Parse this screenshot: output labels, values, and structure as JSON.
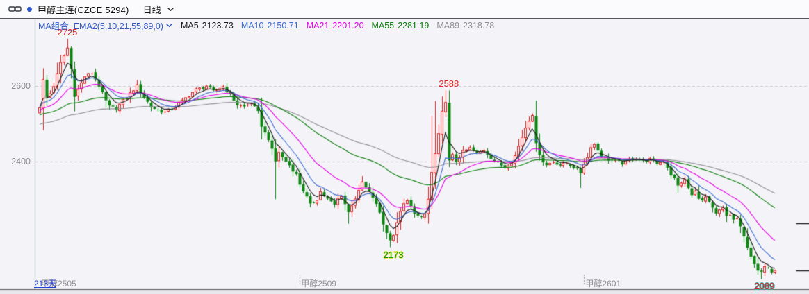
{
  "window": {
    "title": "甲醇主连(CZCE 5294)",
    "period": "日线"
  },
  "indicator": {
    "name": "MA组合_EMA2(5,10,21,55,89,0)",
    "values": [
      {
        "label": "MA5",
        "value": "2123.73",
        "color": "#1a1a1a"
      },
      {
        "label": "MA10",
        "value": "2150.71",
        "color": "#3c6cd2"
      },
      {
        "label": "MA21",
        "value": "2201.20",
        "color": "#e400e4"
      },
      {
        "label": "MA55",
        "value": "2281.19",
        "color": "#0b7d0b"
      },
      {
        "label": "MA89",
        "value": "2318.78",
        "color": "#8f8f93"
      }
    ]
  },
  "chart_data": {
    "type": "candlestick",
    "title": "甲醇主连(CZCE 5294) 日线",
    "symbol": "甲醇主连",
    "exchange_code": "CZCE 5294",
    "timeframe": "日线",
    "visible_days_label": "213天",
    "candle_count": 213,
    "ylim": [
      2062,
      2776
    ],
    "grid": "dashed-horizontal",
    "legend_position": "top-left",
    "up_color": "#e02020",
    "down_color": "#0e8412",
    "grid_color": "#c8c8ce",
    "y_axis": {
      "ticks": [
        {
          "label": "2600",
          "value": 2600
        },
        {
          "label": "2400",
          "value": 2400
        }
      ]
    },
    "close_anchors": [
      [
        0,
        2545
      ],
      [
        1,
        2615
      ],
      [
        2,
        2570
      ],
      [
        3,
        2580
      ],
      [
        4,
        2600
      ],
      [
        6,
        2660
      ],
      [
        8,
        2700
      ],
      [
        9,
        2645
      ],
      [
        10,
        2575
      ],
      [
        11,
        2590
      ],
      [
        13,
        2625
      ],
      [
        15,
        2635
      ],
      [
        17,
        2600
      ],
      [
        19,
        2560
      ],
      [
        20,
        2545
      ],
      [
        22,
        2540
      ],
      [
        24,
        2560
      ],
      [
        26,
        2580
      ],
      [
        28,
        2600
      ],
      [
        30,
        2570
      ],
      [
        32,
        2545
      ],
      [
        34,
        2535
      ],
      [
        36,
        2530
      ],
      [
        38,
        2540
      ],
      [
        41,
        2560
      ],
      [
        43,
        2575
      ],
      [
        45,
        2590
      ],
      [
        47,
        2595
      ],
      [
        48,
        2600
      ],
      [
        50,
        2585
      ],
      [
        53,
        2598
      ],
      [
        55,
        2575
      ],
      [
        57,
        2550
      ],
      [
        59,
        2545
      ],
      [
        61,
        2555
      ],
      [
        63,
        2530
      ],
      [
        64,
        2495
      ],
      [
        65,
        2475
      ],
      [
        66,
        2460
      ],
      [
        67,
        2430
      ],
      [
        68,
        2400
      ],
      [
        69,
        2425
      ],
      [
        70,
        2410
      ],
      [
        71,
        2400
      ],
      [
        72,
        2390
      ],
      [
        74,
        2365
      ],
      [
        75,
        2340
      ],
      [
        77,
        2305
      ],
      [
        78,
        2285
      ],
      [
        80,
        2300
      ],
      [
        81,
        2320
      ],
      [
        83,
        2300
      ],
      [
        85,
        2285
      ],
      [
        86,
        2300
      ],
      [
        87,
        2310
      ],
      [
        89,
        2265
      ],
      [
        90,
        2285
      ],
      [
        92,
        2320
      ],
      [
        93,
        2345
      ],
      [
        94,
        2330
      ],
      [
        96,
        2305
      ],
      [
        98,
        2265
      ],
      [
        99,
        2235
      ],
      [
        100,
        2210
      ],
      [
        101,
        2195
      ],
      [
        102,
        2205
      ],
      [
        103,
        2235
      ],
      [
        104,
        2270
      ],
      [
        105,
        2285
      ],
      [
        106,
        2295
      ],
      [
        107,
        2280
      ],
      [
        108,
        2265
      ],
      [
        109,
        2255
      ],
      [
        110,
        2250
      ],
      [
        111,
        2260
      ],
      [
        112,
        2300
      ],
      [
        113,
        2370
      ],
      [
        114,
        2420
      ],
      [
        115,
        2470
      ],
      [
        116,
        2530
      ],
      [
        117,
        2560
      ],
      [
        118,
        2400
      ],
      [
        119,
        2415
      ],
      [
        120,
        2400
      ],
      [
        122,
        2425
      ],
      [
        124,
        2435
      ],
      [
        126,
        2420
      ],
      [
        128,
        2430
      ],
      [
        130,
        2410
      ],
      [
        132,
        2395
      ],
      [
        134,
        2385
      ],
      [
        136,
        2400
      ],
      [
        137,
        2415
      ],
      [
        138,
        2440
      ],
      [
        139,
        2465
      ],
      [
        140,
        2490
      ],
      [
        141,
        2510
      ],
      [
        142,
        2525
      ],
      [
        143,
        2445
      ],
      [
        144,
        2420
      ],
      [
        145,
        2400
      ],
      [
        146,
        2390
      ],
      [
        148,
        2400
      ],
      [
        150,
        2390
      ],
      [
        152,
        2395
      ],
      [
        154,
        2385
      ],
      [
        156,
        2370
      ],
      [
        157,
        2395
      ],
      [
        158,
        2410
      ],
      [
        159,
        2440
      ],
      [
        160,
        2445
      ],
      [
        161,
        2430
      ],
      [
        162,
        2415
      ],
      [
        164,
        2405
      ],
      [
        166,
        2400
      ],
      [
        168,
        2395
      ],
      [
        170,
        2405
      ],
      [
        172,
        2410
      ],
      [
        174,
        2400
      ],
      [
        176,
        2405
      ],
      [
        178,
        2395
      ],
      [
        180,
        2400
      ],
      [
        181,
        2385
      ],
      [
        182,
        2365
      ],
      [
        183,
        2355
      ],
      [
        184,
        2335
      ],
      [
        185,
        2345
      ],
      [
        186,
        2350
      ],
      [
        187,
        2330
      ],
      [
        188,
        2310
      ],
      [
        189,
        2320
      ],
      [
        190,
        2305
      ],
      [
        191,
        2295
      ],
      [
        192,
        2305
      ],
      [
        193,
        2290
      ],
      [
        194,
        2275
      ],
      [
        195,
        2260
      ],
      [
        196,
        2270
      ],
      [
        197,
        2275
      ],
      [
        198,
        2255
      ],
      [
        199,
        2260
      ],
      [
        200,
        2245
      ],
      [
        201,
        2250
      ],
      [
        202,
        2225
      ],
      [
        203,
        2200
      ],
      [
        204,
        2175
      ],
      [
        205,
        2150
      ],
      [
        206,
        2125
      ],
      [
        207,
        2110
      ],
      [
        208,
        2105
      ],
      [
        209,
        2125
      ],
      [
        210,
        2120
      ],
      [
        211,
        2110
      ],
      [
        212,
        2115
      ]
    ],
    "wick_overrides": {
      "8": {
        "high": 2725
      },
      "68": {
        "low": 2300
      },
      "89": {
        "low": 2235
      },
      "101": {
        "low": 2173
      },
      "113": {
        "high": 2520
      },
      "114": {
        "high": 2560
      },
      "117": {
        "high": 2588
      },
      "118": {
        "high": 2588,
        "low": 2385
      },
      "156": {
        "low": 2330
      },
      "208": {
        "low": 2089
      }
    },
    "ema": {
      "periods": [
        5,
        10,
        21,
        55,
        89
      ],
      "colors": [
        "#1a1a1a",
        "#3c6cd2",
        "#e400e4",
        "#0b7d0b",
        "#8f8f93"
      ],
      "seed_offsets": [
        0,
        0,
        -10,
        -20,
        -45
      ]
    },
    "price_labels": [
      {
        "text": "2725",
        "value": 2725,
        "anchor_index": 8,
        "placement": "above",
        "color": "#e02222",
        "halo": ""
      },
      {
        "text": "2588",
        "value": 2588,
        "anchor_index": 118,
        "placement": "above",
        "color": "#e02222",
        "halo": ""
      },
      {
        "text": "2173",
        "value": 2173,
        "anchor_index": 102,
        "placement": "below",
        "color": "#0c9a0c",
        "halo": "#e0e050"
      },
      {
        "text": "2089",
        "value": 2089,
        "anchor_index": 209,
        "placement": "below",
        "color": "#e02222",
        "halo": "#45b5ae"
      }
    ],
    "contracts": [
      {
        "label": "甲醇2505",
        "index": 0
      },
      {
        "label": "甲醇2509",
        "index": 75
      },
      {
        "label": "甲醇2601",
        "index": 157
      }
    ],
    "right_edge_markers": [
      {
        "price": 2237
      },
      {
        "price": 2112
      }
    ]
  }
}
